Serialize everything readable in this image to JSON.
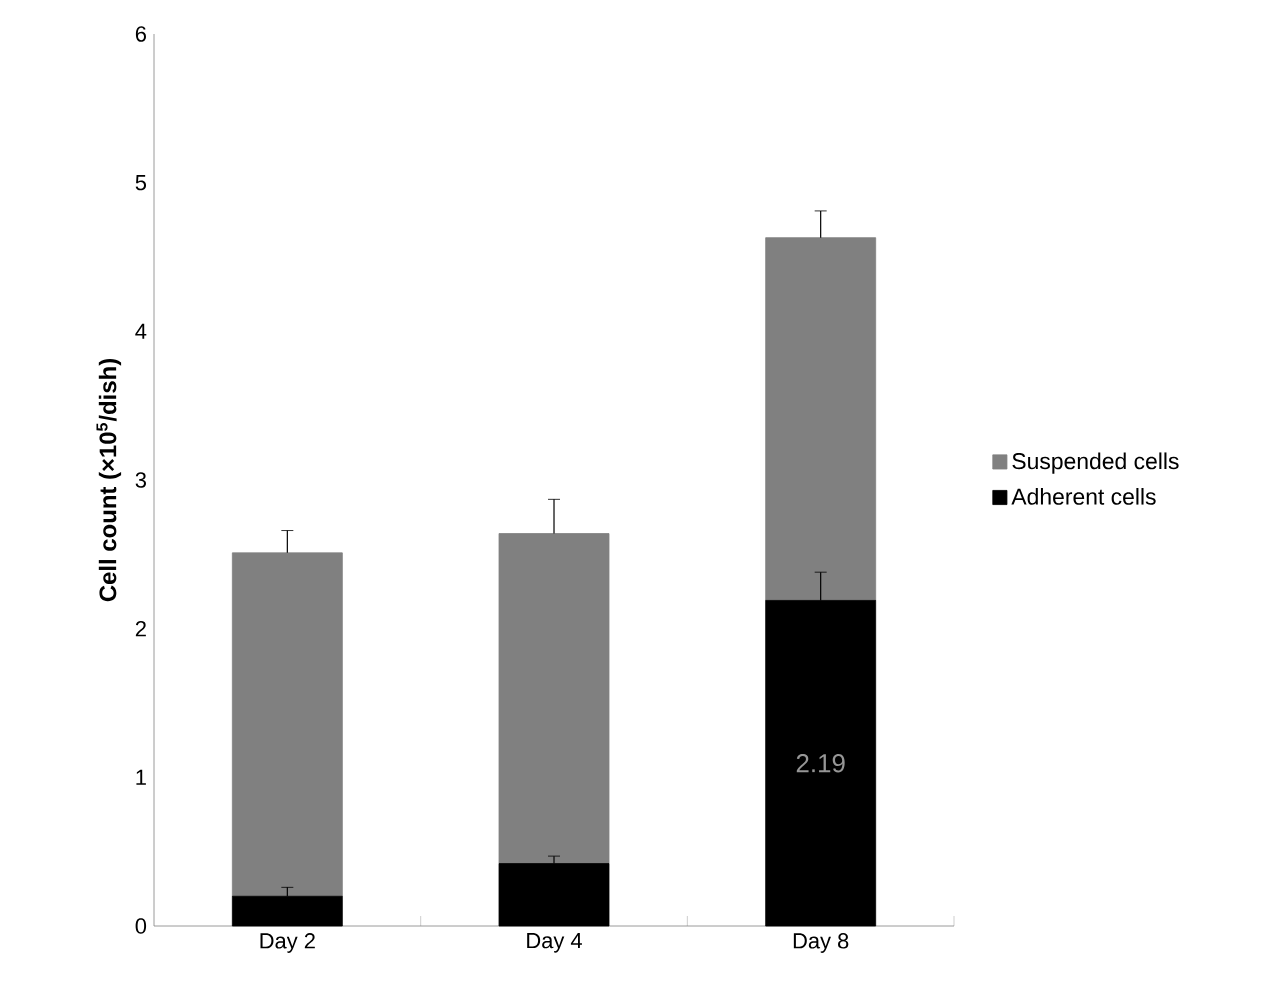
{
  "chart_data": {
    "type": "bar",
    "stacked": true,
    "ylabel": "Cell count (×10$^{5}$/dish)",
    "categories": [
      "Day 2",
      "Day 4",
      "Day 8"
    ],
    "series": [
      {
        "name": "Adherent cells",
        "color": "#000000",
        "values": [
          0.2,
          0.42,
          2.19
        ],
        "errors": [
          0.06,
          0.05,
          0.19
        ],
        "value_labels": [
          null,
          null,
          "2.19"
        ]
      },
      {
        "name": "Suspended cells",
        "color": "#808080",
        "values": [
          2.31,
          2.22,
          2.44
        ],
        "errors": [
          0.15,
          0.23,
          0.18
        ]
      }
    ],
    "ylim": [
      0,
      6
    ],
    "yticks": [
      0,
      1,
      2,
      3,
      4,
      5,
      6
    ],
    "grid": false,
    "legend": "right"
  }
}
